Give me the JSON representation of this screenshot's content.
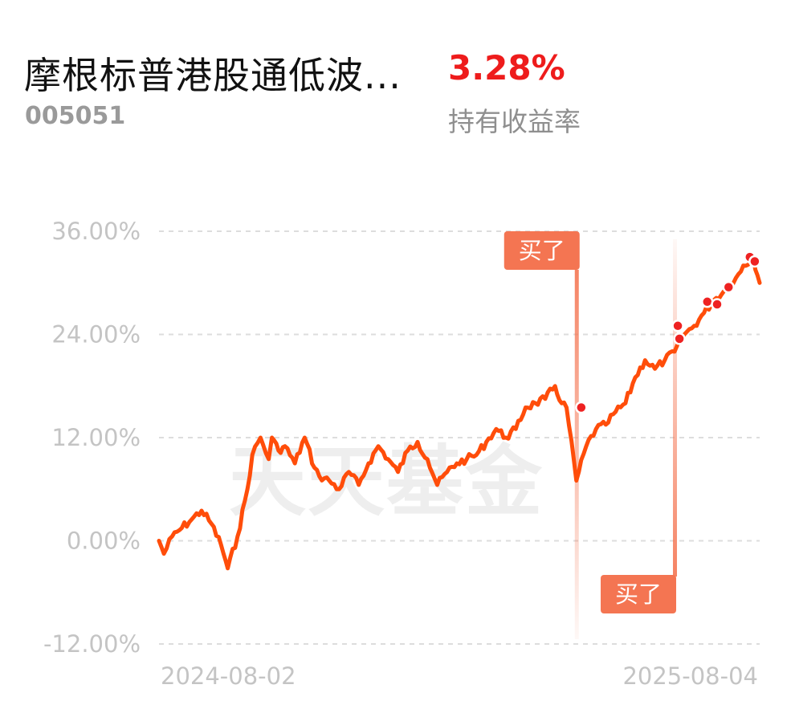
{
  "fund": {
    "name": "摩根标普港股通低波...",
    "code": "005051",
    "holding_return": "3.28%",
    "holding_return_label": "持有收益率"
  },
  "colors": {
    "line": "#ff4d0a",
    "marker": "#ee2222",
    "buy_tag": "#f47552",
    "gridline": "#dddddd",
    "return_value": "#ee1c1c"
  },
  "chart_data": {
    "type": "line",
    "watermark": "天天基金",
    "y_ticks": [
      "36.00%",
      "24.00%",
      "12.00%",
      "0.00%",
      "-12.00%"
    ],
    "y_tick_values": [
      36,
      24,
      12,
      0,
      -12
    ],
    "ylim": [
      -12,
      36
    ],
    "x_ticks": [
      "2024-08-02",
      "2025-08-04"
    ],
    "x_start": "2024-08-02",
    "x_end": "2025-08-04",
    "grid": true,
    "series": [
      {
        "x": [
          "2024-08-02",
          "2024-08-05",
          "2024-08-10",
          "2024-08-16",
          "2024-08-22",
          "2024-08-28",
          "2024-09-03",
          "2024-09-09",
          "2024-09-13",
          "2024-09-19",
          "2024-09-25",
          "2024-09-28",
          "2024-10-03",
          "2024-10-08",
          "2024-10-10",
          "2024-10-14",
          "2024-10-18",
          "2024-10-24",
          "2024-10-30",
          "2024-11-05",
          "2024-11-08",
          "2024-11-14",
          "2024-11-20",
          "2024-11-26",
          "2024-12-02",
          "2024-12-08",
          "2024-12-14",
          "2024-12-20",
          "2024-12-26",
          "2025-01-01",
          "2025-01-07",
          "2025-01-13",
          "2025-01-19",
          "2025-01-25",
          "2025-01-31",
          "2025-02-06",
          "2025-02-12",
          "2025-02-18",
          "2025-02-24",
          "2025-03-02",
          "2025-03-08",
          "2025-03-14",
          "2025-03-20",
          "2025-03-26",
          "2025-04-01",
          "2025-04-05",
          "2025-04-08",
          "2025-04-14",
          "2025-04-20",
          "2025-04-26",
          "2025-05-02",
          "2025-05-08",
          "2025-05-14",
          "2025-05-20",
          "2025-05-26",
          "2025-06-01",
          "2025-06-07",
          "2025-06-13",
          "2025-06-19",
          "2025-06-25",
          "2025-07-01",
          "2025-07-07",
          "2025-07-13",
          "2025-07-19",
          "2025-07-25",
          "2025-07-31",
          "2025-08-04"
        ],
        "y": [
          0.0,
          -1.5,
          0.5,
          1.5,
          2.5,
          3.5,
          2.0,
          -0.5,
          -3.2,
          0.5,
          6.0,
          10.0,
          12.0,
          9.5,
          12.0,
          10.5,
          11.0,
          9.0,
          12.0,
          8.5,
          7.5,
          7.0,
          6.0,
          8.0,
          6.5,
          9.0,
          11.0,
          9.5,
          8.0,
          10.5,
          11.5,
          9.5,
          6.5,
          8.0,
          9.0,
          9.5,
          10.0,
          11.5,
          13.0,
          12.0,
          13.0,
          15.5,
          16.0,
          16.5,
          18.0,
          16.0,
          15.5,
          7.0,
          11.0,
          13.0,
          13.5,
          15.0,
          16.0,
          19.0,
          21.0,
          20.0,
          21.0,
          22.0,
          24.0,
          25.0,
          26.5,
          28.0,
          29.0,
          30.0,
          32.0,
          33.0,
          30.0
        ]
      }
    ],
    "buy_markers": [
      {
        "date": "2025-04-15",
        "label": "买了",
        "tag_position": "top"
      },
      {
        "date": "2025-06-13",
        "label": "买了",
        "tag_position": "bottom"
      }
    ],
    "trade_points": [
      {
        "x": "2025-04-17",
        "y": 15.5
      },
      {
        "x": "2025-06-15",
        "y": 25.0
      },
      {
        "x": "2025-06-16",
        "y": 23.5
      },
      {
        "x": "2025-07-03",
        "y": 27.8
      },
      {
        "x": "2025-07-09",
        "y": 27.5
      },
      {
        "x": "2025-07-16",
        "y": 29.5
      },
      {
        "x": "2025-07-29",
        "y": 33.0
      },
      {
        "x": "2025-08-01",
        "y": 32.5
      }
    ]
  }
}
